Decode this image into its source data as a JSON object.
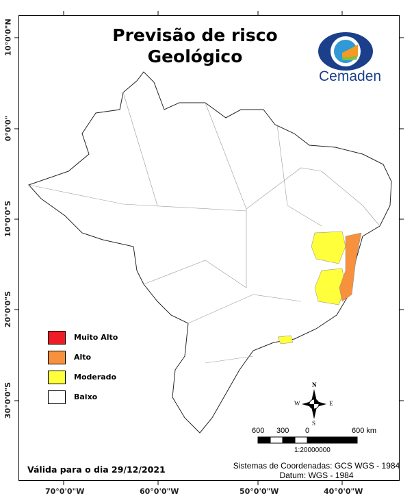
{
  "title": {
    "line1": "Previsão de risco",
    "line2": "Geológico"
  },
  "logo": {
    "text": "Cemaden",
    "colors": [
      "#1b3f8b",
      "#2f9ad6",
      "#f59a23",
      "#7cc243"
    ]
  },
  "axes": {
    "top_bottom": [
      "70°0'0\"W",
      "60°0'0\"W",
      "50°0'0\"W",
      "40°0'0\"W"
    ],
    "left": [
      "10°0'0\"N",
      "0°0'0\"",
      "10°0'0\"S",
      "20°0'0\"S",
      "30°0'0\"S"
    ]
  },
  "legend": [
    {
      "label": "Muito Alto",
      "color": "#ee1c25"
    },
    {
      "label": "Alto",
      "color": "#f7913d"
    },
    {
      "label": "Moderado",
      "color": "#ffff3b"
    },
    {
      "label": "Baixo",
      "color": "#ffffff"
    }
  ],
  "compass": {
    "n": "N",
    "s": "S",
    "e": "E",
    "w": "W"
  },
  "scale": {
    "labels": [
      "600",
      "300",
      "0",
      "600 km"
    ],
    "ratio": "1:20000000"
  },
  "valid_text": "Válida para o dia 29/12/2021",
  "crs": {
    "line1": "Sistemas de Coordenadas: GCS WGS - 1984",
    "line2": "Datum: WGS - 1984"
  }
}
